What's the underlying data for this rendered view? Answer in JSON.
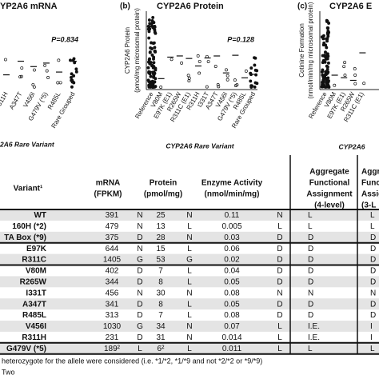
{
  "panels": [
    {
      "label": null,
      "title": "YP2A6 mRNA",
      "p_value": "P=0.834",
      "x_labels": [
        "311H",
        "A347T",
        "V456I",
        "G479V (*5)",
        "R485L",
        "Rare Grouped"
      ],
      "x_title": "2A6 Rare Variant",
      "y_title": []
    },
    {
      "label": "(b)",
      "title": "CYP2A6 Protein",
      "p_value": "P=0.128",
      "x_labels": [
        "Reference",
        "V80M",
        "E97K (E1)",
        "R265W",
        "R311C (E1)",
        "R311H",
        "I331T",
        "A347T",
        "V456I",
        "G479V (*5)",
        "R485L",
        "Rare Grouped"
      ],
      "x_title": "CYP2A6 Rare Variant",
      "y_title": [
        "CYP2A6 Protein",
        "(pmol/mg microsomal protein)"
      ]
    },
    {
      "label": "(c)",
      "title": "CYP2A6 E",
      "p_value": null,
      "x_labels": [
        "Reference",
        "V80M",
        "E97K (E1)",
        "R265W",
        "R311C (E1)"
      ],
      "x_title": "CYP2A6",
      "y_title": [
        "Cotinine Formation",
        "(nmol/min/mg microsomal protein)"
      ]
    }
  ],
  "table": {
    "header": [
      [
        "Variant¹"
      ],
      [
        "mRNA",
        "(FPKM)"
      ],
      [
        "Protein",
        "(pmol/mg)"
      ],
      [
        "Enzyme Activity",
        "(nmol/min/mg)"
      ],
      [
        "Aggregate",
        "Functional",
        "Assignment",
        "(4-level)"
      ],
      [
        "Aggre",
        "Functi",
        "Assig",
        "(3-L"
      ]
    ],
    "rows": [
      [
        "WT",
        "391",
        "N",
        "25",
        "N",
        "0.11",
        "N",
        "L",
        "L"
      ],
      [
        "160H (*2)",
        "479",
        "N",
        "13",
        "L",
        "0.005",
        "L",
        "L",
        "L"
      ],
      [
        "TA Box (*9)",
        "375",
        "D",
        "28",
        "N",
        "0.03",
        "D",
        "D",
        "D"
      ],
      [
        "E97K",
        "644",
        "N",
        "15",
        "L",
        "0.06",
        "D",
        "D",
        "D"
      ],
      [
        "R311C",
        "1405",
        "G",
        "53",
        "G",
        "0.02",
        "D",
        "D",
        "D"
      ],
      [
        "V80M",
        "402",
        "D",
        "7",
        "L",
        "0.04",
        "D",
        "D",
        "D"
      ],
      [
        "R265W",
        "344",
        "D",
        "8",
        "L",
        "0.05",
        "D",
        "D",
        "D"
      ],
      [
        "I331T",
        "456",
        "N",
        "30",
        "N",
        "0.08",
        "N",
        "N",
        "N"
      ],
      [
        "A347T",
        "341",
        "D",
        "8",
        "L",
        "0.05",
        "D",
        "D",
        "D"
      ],
      [
        "R485L",
        "313",
        "D",
        "7",
        "L",
        "0.08",
        "D",
        "D",
        "D"
      ],
      [
        "V456I",
        "1030",
        "G",
        "34",
        "N",
        "0.07",
        "L",
        "I.E.",
        "I"
      ],
      [
        "R311H",
        "231",
        "D",
        "31",
        "N",
        "0.014",
        "L",
        "I.E.",
        "I"
      ],
      [
        "G479V (*5)",
        "189²",
        "L",
        "6²",
        "L",
        "0.011",
        "L",
        "L",
        "L"
      ]
    ]
  },
  "footnotes": [
    "heterozygote for the allele were considered (i.e. *1/*2, *1/*9 and not *2/*2 or *9/*9)",
    "Two"
  ]
}
